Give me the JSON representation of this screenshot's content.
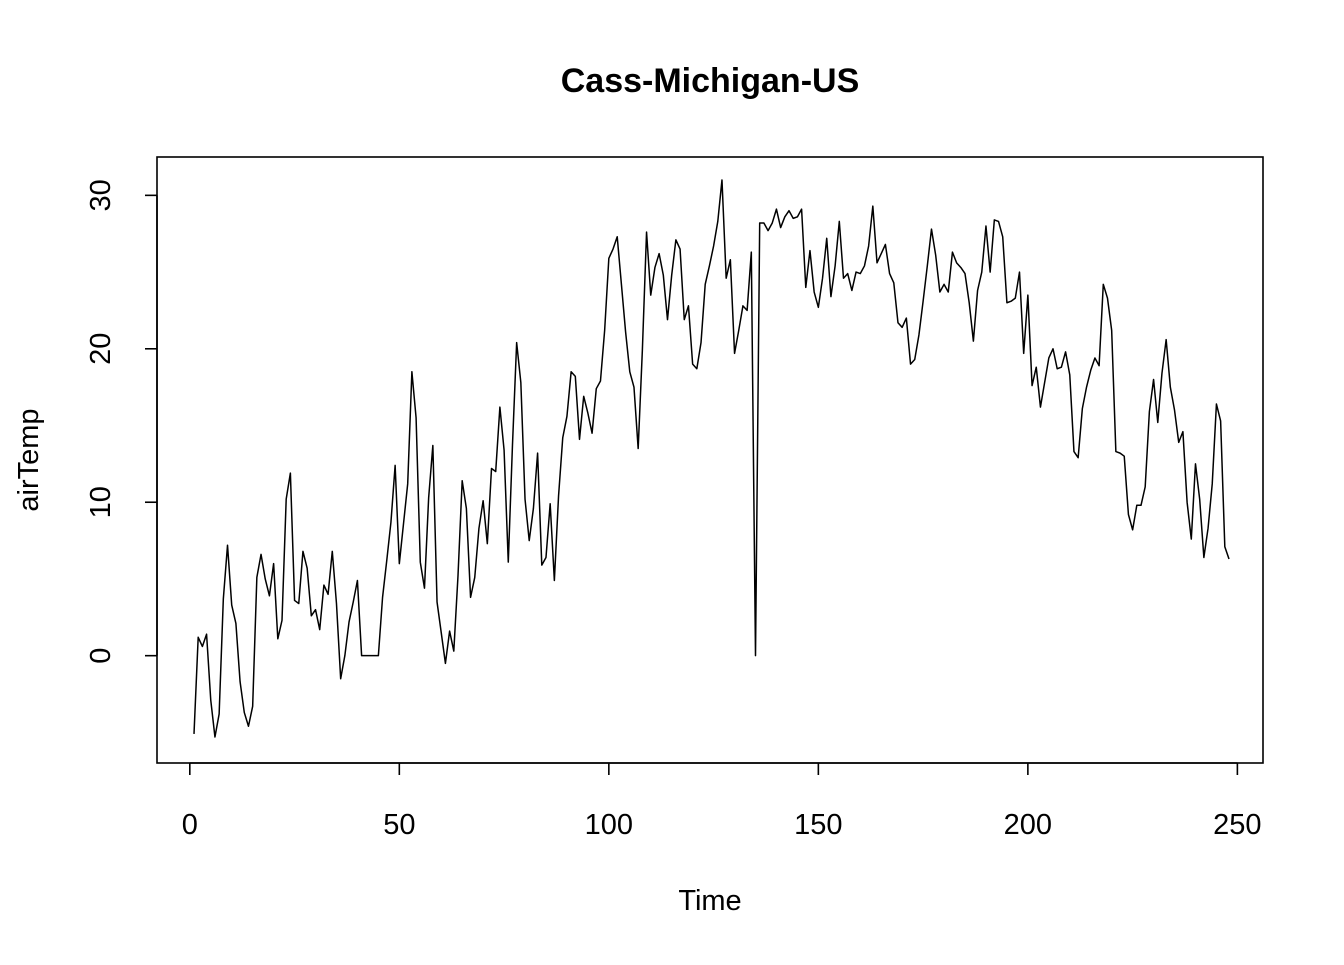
{
  "chart_data": {
    "type": "line",
    "title": "Cass-Michigan-US",
    "xlabel": "Time",
    "ylabel": "airTemp",
    "xlim": [
      1,
      248
    ],
    "ylim": [
      -5.3,
      31
    ],
    "x_ticks": [
      0,
      50,
      100,
      150,
      200,
      250
    ],
    "y_ticks": [
      0,
      10,
      20,
      30
    ],
    "x_tick_labels": [
      "0",
      "50",
      "100",
      "150",
      "200",
      "250"
    ],
    "y_tick_labels": [
      "0",
      "10",
      "20",
      "30"
    ],
    "grid": false,
    "legend": "none",
    "line_color": "#000000",
    "series": [
      {
        "x_start": 1,
        "values": [
          -5.1,
          1.2,
          0.6,
          1.4,
          -2.9,
          -5.3,
          -3.8,
          3.7,
          7.2,
          3.3,
          2.1,
          -1.7,
          -3.7,
          -4.6,
          -3.3,
          5.1,
          6.6,
          5.0,
          3.9,
          6.0,
          1.1,
          2.3,
          10.2,
          11.9,
          3.6,
          3.4,
          6.8,
          5.7,
          2.6,
          3.0,
          1.7,
          4.6,
          4.0,
          6.8,
          3.4,
          -1.5,
          0.0,
          2.2,
          3.5,
          4.9,
          0.0,
          0.0,
          0.0,
          0.0,
          0.0,
          3.8,
          6.2,
          8.7,
          12.4,
          6.0,
          8.6,
          11.2,
          18.5,
          15.5,
          6.1,
          4.4,
          10.3,
          13.7,
          3.5,
          1.5,
          -0.5,
          1.6,
          0.3,
          5.2,
          11.4,
          9.6,
          3.8,
          5.1,
          8.3,
          10.1,
          7.3,
          12.2,
          12.0,
          16.2,
          13.4,
          6.1,
          13.7,
          20.4,
          17.8,
          10.2,
          7.5,
          9.6,
          13.2,
          5.9,
          6.4,
          9.9,
          4.9,
          10.4,
          14.2,
          15.6,
          18.5,
          18.2,
          14.1,
          16.9,
          15.8,
          14.5,
          17.4,
          17.9,
          21.2,
          25.9,
          26.5,
          27.3,
          24.2,
          21.1,
          18.5,
          17.5,
          13.5,
          19.9,
          27.6,
          23.5,
          25.3,
          26.2,
          24.8,
          21.9,
          24.8,
          27.1,
          26.5,
          21.9,
          22.8,
          19.0,
          18.7,
          20.4,
          24.2,
          25.4,
          26.7,
          28.3,
          31.0,
          24.6,
          25.8,
          19.7,
          21.2,
          22.8,
          22.5,
          26.3,
          0.0,
          28.2,
          28.2,
          27.7,
          28.2,
          29.1,
          27.9,
          28.6,
          29.0,
          28.5,
          28.6,
          29.1,
          24.0,
          26.4,
          23.7,
          22.7,
          24.6,
          27.2,
          23.4,
          25.4,
          28.3,
          24.6,
          24.9,
          23.8,
          25.0,
          24.9,
          25.4,
          26.7,
          29.3,
          25.6,
          26.2,
          26.8,
          24.9,
          24.3,
          21.7,
          21.4,
          22.0,
          19.0,
          19.3,
          20.9,
          23.1,
          25.4,
          27.8,
          26.1,
          23.7,
          24.2,
          23.7,
          26.3,
          25.6,
          25.3,
          24.9,
          23.0,
          20.5,
          23.8,
          25.0,
          28.0,
          25.0,
          28.4,
          28.3,
          27.3,
          23.0,
          23.1,
          23.3,
          25.0,
          19.7,
          23.5,
          17.6,
          18.8,
          16.2,
          17.8,
          19.4,
          20.0,
          18.7,
          18.8,
          19.8,
          18.3,
          13.3,
          12.9,
          16.1,
          17.5,
          18.6,
          19.4,
          18.9,
          24.2,
          23.3,
          21.2,
          13.3,
          13.2,
          13.0,
          9.2,
          8.2,
          9.8,
          9.8,
          11.0,
          15.9,
          18.0,
          15.2,
          18.4,
          20.6,
          17.5,
          16.0,
          13.9,
          14.6,
          10.0,
          7.6,
          12.5,
          10.2,
          6.4,
          8.3,
          11.2,
          16.4,
          15.3,
          7.1,
          6.3
        ]
      }
    ]
  }
}
